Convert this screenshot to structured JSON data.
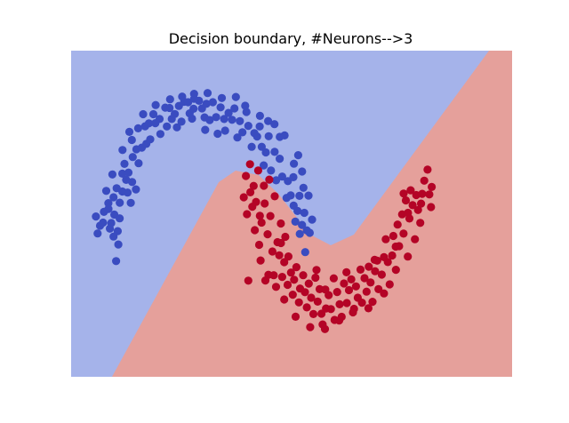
{
  "chart_data": {
    "type": "scatter",
    "title": "Decision boundary, #Neurons-->3",
    "xlabel": "",
    "ylabel": "",
    "xlim": [
      -1.2,
      2.2
    ],
    "ylim": [
      -0.8,
      1.3
    ],
    "axes_visible": false,
    "grid": false,
    "legend": "none",
    "colors": {
      "region_class0": "#a5b3ea",
      "region_class1": "#e5a09b",
      "points_class0": "#3a4cc0",
      "points_class1": "#b40426"
    },
    "series": [
      {
        "class": 0,
        "values": [
          [
            -0.977,
            0.173
          ],
          [
            -0.954,
            0.193
          ],
          [
            -0.912,
            0.281
          ],
          [
            -0.913,
            0.318
          ],
          [
            -0.901,
            0.154
          ],
          [
            -0.891,
            0.19
          ],
          [
            -0.873,
            0.356
          ],
          [
            -0.849,
            0.414
          ],
          [
            -0.825,
            0.321
          ],
          [
            -0.841,
            0.138
          ],
          [
            -0.867,
            0.244
          ],
          [
            -0.873,
            0.103
          ],
          [
            -0.853,
            -0.055
          ],
          [
            -0.836,
            0.052
          ],
          [
            -0.826,
            0.22
          ],
          [
            -0.805,
            0.508
          ],
          [
            -0.805,
            0.393
          ],
          [
            -0.789,
            0.571
          ],
          [
            -0.776,
            0.468
          ],
          [
            -0.765,
            0.386
          ],
          [
            -0.758,
            0.515
          ],
          [
            -0.725,
            0.615
          ],
          [
            -0.73,
            0.454
          ],
          [
            -0.732,
            0.725
          ],
          [
            -0.697,
            0.665
          ],
          [
            -0.68,
            0.575
          ],
          [
            -0.683,
            0.8
          ],
          [
            -0.655,
            0.676
          ],
          [
            -0.63,
            0.813
          ],
          [
            -0.6,
            0.832
          ],
          [
            -0.62,
            0.7
          ],
          [
            -0.59,
            0.729
          ],
          [
            -0.566,
            0.891
          ],
          [
            -0.551,
            0.833
          ],
          [
            -0.518,
            0.86
          ],
          [
            -0.512,
            0.763
          ],
          [
            -0.474,
            0.933
          ],
          [
            -0.462,
            0.812
          ],
          [
            -0.441,
            0.931
          ],
          [
            -0.424,
            0.86
          ],
          [
            -0.401,
            0.892
          ],
          [
            -0.384,
            0.806
          ],
          [
            -0.369,
            0.944
          ],
          [
            -0.349,
            0.843
          ],
          [
            -0.329,
            0.971
          ],
          [
            -0.298,
            0.968
          ],
          [
            -0.286,
            0.896
          ],
          [
            -0.256,
            0.926
          ],
          [
            -0.268,
            0.862
          ],
          [
            -0.252,
            1.022
          ],
          [
            -0.214,
            0.977
          ],
          [
            -0.191,
            0.928
          ],
          [
            -0.171,
            0.87
          ],
          [
            -0.157,
            0.958
          ],
          [
            -0.166,
            0.79
          ],
          [
            -0.131,
            0.853
          ],
          [
            -0.107,
            0.968
          ],
          [
            -0.082,
            0.872
          ],
          [
            -0.07,
            0.765
          ],
          [
            -0.048,
            0.935
          ],
          [
            -0.013,
            0.785
          ],
          [
            0.014,
            0.899
          ],
          [
            -0.02,
            0.86
          ],
          [
            0.041,
            0.855
          ],
          [
            0.059,
            0.928
          ],
          [
            0.082,
            0.741
          ],
          [
            0.101,
            0.846
          ],
          [
            0.121,
            0.774
          ],
          [
            0.152,
            0.905
          ],
          [
            0.166,
            0.816
          ],
          [
            0.192,
            0.681
          ],
          [
            0.213,
            0.769
          ],
          [
            0.234,
            0.747
          ],
          [
            0.254,
            0.812
          ],
          [
            0.27,
            0.681
          ],
          [
            0.301,
            0.645
          ],
          [
            0.285,
            0.561
          ],
          [
            0.323,
            0.749
          ],
          [
            0.341,
            0.528
          ],
          [
            0.369,
            0.648
          ],
          [
            0.381,
            0.465
          ],
          [
            0.408,
            0.604
          ],
          [
            0.427,
            0.489
          ],
          [
            0.461,
            0.352
          ],
          [
            0.471,
            0.46
          ],
          [
            0.493,
            0.368
          ],
          [
            0.514,
            0.485
          ],
          [
            0.516,
            0.302
          ],
          [
            0.545,
            0.268
          ],
          [
            0.56,
            0.365
          ],
          [
            0.58,
            0.178
          ],
          [
            0.598,
            0.256
          ],
          [
            0.563,
            0.12
          ],
          [
            0.617,
            0.143
          ],
          [
            0.605,
            0.003
          ],
          [
            0.64,
            0.127
          ],
          [
            0.658,
            0.212
          ],
          [
            0.529,
            0.199
          ],
          [
            0.63,
            0.367
          ],
          [
            0.591,
            0.417
          ],
          [
            0.581,
            0.522
          ],
          [
            0.551,
            0.627
          ],
          [
            0.518,
            0.572
          ],
          [
            0.446,
            0.754
          ],
          [
            0.409,
            0.745
          ],
          [
            0.368,
            0.827
          ],
          [
            0.319,
            0.847
          ],
          [
            0.256,
            0.88
          ],
          [
            0.142,
            0.945
          ],
          [
            0.07,
            1.002
          ],
          [
            -0.038,
            0.995
          ],
          [
            -0.148,
            1.027
          ],
          [
            -0.252,
            0.99
          ],
          [
            -0.344,
            1.004
          ],
          [
            -0.437,
            0.987
          ],
          [
            -0.548,
            0.95
          ],
          [
            -0.645,
            0.891
          ],
          [
            -0.751,
            0.777
          ],
          [
            -0.804,
            0.66
          ],
          [
            -0.882,
            0.503
          ],
          [
            -0.929,
            0.397
          ],
          [
            -0.947,
            0.262
          ],
          [
            -1.009,
            0.232
          ],
          [
            -0.996,
            0.123
          ],
          [
            -0.74,
            0.32
          ],
          [
            -0.7,
            0.407
          ]
        ]
      },
      {
        "class": 1,
        "values": [
          [
            0.148,
            0.493
          ],
          [
            0.182,
            0.388
          ],
          [
            0.197,
            0.295
          ],
          [
            0.216,
            0.144
          ],
          [
            0.226,
            0.326
          ],
          [
            0.25,
            0.05
          ],
          [
            0.261,
            -0.051
          ],
          [
            0.268,
            0.193
          ],
          [
            0.286,
            0.43
          ],
          [
            0.292,
            0.316
          ],
          [
            0.315,
            0.118
          ],
          [
            0.328,
            0.47
          ],
          [
            0.336,
            0.235
          ],
          [
            0.352,
            0.007
          ],
          [
            0.362,
            -0.146
          ],
          [
            0.37,
            0.362
          ],
          [
            0.391,
            0.067
          ],
          [
            0.405,
            -0.018
          ],
          [
            0.417,
            0.187
          ],
          [
            0.427,
            -0.157
          ],
          [
            0.443,
            -0.062
          ],
          [
            0.451,
            0.101
          ],
          [
            0.469,
            -0.208
          ],
          [
            0.475,
            -0.025
          ],
          [
            0.495,
            -0.129
          ],
          [
            0.509,
            -0.271
          ],
          [
            0.519,
            -0.175
          ],
          [
            0.537,
            -0.094
          ],
          [
            0.556,
            -0.321
          ],
          [
            0.565,
            -0.232
          ],
          [
            0.589,
            -0.146
          ],
          [
            0.603,
            -0.255
          ],
          [
            0.617,
            -0.353
          ],
          [
            0.632,
            -0.2
          ],
          [
            0.651,
            -0.291
          ],
          [
            0.668,
            -0.396
          ],
          [
            0.684,
            -0.162
          ],
          [
            0.701,
            -0.316
          ],
          [
            0.716,
            -0.236
          ],
          [
            0.73,
            -0.394
          ],
          [
            0.739,
            -0.463
          ],
          [
            0.76,
            -0.238
          ],
          [
            0.765,
            -0.36
          ],
          [
            0.786,
            -0.274
          ],
          [
            0.803,
            -0.364
          ],
          [
            0.825,
            -0.166
          ],
          [
            0.831,
            -0.434
          ],
          [
            0.851,
            -0.254
          ],
          [
            0.87,
            -0.333
          ],
          [
            0.886,
            -0.414
          ],
          [
            0.904,
            -0.199
          ],
          [
            0.926,
            -0.325
          ],
          [
            0.942,
            -0.242
          ],
          [
            0.96,
            -0.173
          ],
          [
            0.973,
            -0.385
          ],
          [
            0.996,
            -0.218
          ],
          [
            1.01,
            -0.291
          ],
          [
            1.031,
            -0.11
          ],
          [
            1.042,
            -0.323
          ],
          [
            1.062,
            -0.165
          ],
          [
            1.078,
            -0.252
          ],
          [
            1.095,
            -0.091
          ],
          [
            1.109,
            -0.193
          ],
          [
            1.124,
            -0.317
          ],
          [
            1.144,
            -0.12
          ],
          [
            1.16,
            -0.052
          ],
          [
            1.17,
            -0.236
          ],
          [
            1.195,
            -0.142
          ],
          [
            1.212,
            -0.03
          ],
          [
            1.226,
            0.086
          ],
          [
            1.242,
            -0.061
          ],
          [
            1.256,
            -0.205
          ],
          [
            1.275,
            -0.019
          ],
          [
            1.284,
            0.107
          ],
          [
            1.304,
            -0.111
          ],
          [
            1.317,
            0.18
          ],
          [
            1.329,
            0.041
          ],
          [
            1.352,
            0.246
          ],
          [
            1.363,
            0.122
          ],
          [
            1.381,
            0.336
          ],
          [
            1.396,
            -0.026
          ],
          [
            1.408,
            0.219
          ],
          [
            1.418,
            0.401
          ],
          [
            1.433,
            0.305
          ],
          [
            1.451,
            0.086
          ],
          [
            1.461,
            0.37
          ],
          [
            1.475,
            0.274
          ],
          [
            1.492,
            0.191
          ],
          [
            1.507,
            0.378
          ],
          [
            1.523,
            0.463
          ],
          [
            1.548,
            0.534
          ],
          [
            1.562,
            0.374
          ],
          [
            1.575,
            0.293
          ],
          [
            1.397,
            0.256
          ],
          [
            1.303,
            0.038
          ],
          [
            1.212,
            -0.263
          ],
          [
            1.092,
            -0.359
          ],
          [
            0.981,
            -0.362
          ],
          [
            0.867,
            -0.437
          ],
          [
            0.757,
            -0.493
          ],
          [
            0.643,
            -0.48
          ],
          [
            0.531,
            -0.413
          ],
          [
            0.443,
            -0.302
          ],
          [
            0.38,
            -0.221
          ],
          [
            0.321,
            -0.143
          ],
          [
            0.255,
            0.236
          ],
          [
            0.207,
            0.429
          ],
          [
            0.242,
            0.528
          ],
          [
            0.179,
            0.569
          ],
          [
            0.156,
            0.247
          ],
          [
            0.131,
            0.356
          ],
          [
            0.166,
            -0.181
          ],
          [
            0.418,
            0.061
          ],
          [
            0.692,
            -0.112
          ],
          [
            0.923,
            -0.127
          ],
          [
            1.14,
            -0.047
          ],
          [
            1.364,
            0.38
          ],
          [
            1.498,
            0.315
          ],
          [
            1.58,
            0.422
          ],
          [
            0.298,
            -0.18
          ]
        ]
      }
    ]
  }
}
